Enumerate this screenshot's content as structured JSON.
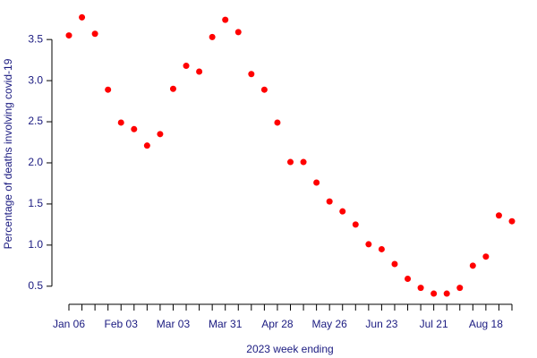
{
  "chart_data": {
    "type": "scatter",
    "xlabel": "2023 week ending",
    "ylabel": "Percentage of deaths involving covid-19",
    "categories": [
      "Jan 06",
      null,
      null,
      null,
      "Feb 03",
      null,
      null,
      null,
      "Mar 03",
      null,
      null,
      null,
      "Mar 31",
      null,
      null,
      null,
      "Apr 28",
      null,
      null,
      null,
      "May 26",
      null,
      null,
      null,
      "Jun 23",
      null,
      null,
      null,
      "Jul 21",
      null,
      null,
      null,
      "Aug 18",
      null,
      null
    ],
    "values": [
      3.55,
      3.77,
      3.57,
      2.89,
      2.49,
      2.41,
      2.21,
      2.35,
      2.9,
      3.18,
      3.11,
      3.53,
      3.74,
      3.59,
      3.08,
      2.89,
      2.49,
      2.01,
      2.01,
      1.76,
      1.53,
      1.41,
      1.25,
      1.01,
      0.95,
      0.77,
      0.59,
      0.48,
      0.41,
      0.41,
      0.48,
      0.75,
      0.86,
      1.36,
      1.29
    ],
    "color": "#ff0000",
    "ylim": [
      0.28,
      3.85
    ],
    "yticks": [
      0.5,
      {
        "value": 1,
        "label": "1.0"
      },
      1.5,
      {
        "value": 2,
        "label": "2.0"
      },
      2.5,
      {
        "value": 3,
        "label": "3.0"
      },
      3.5
    ]
  }
}
